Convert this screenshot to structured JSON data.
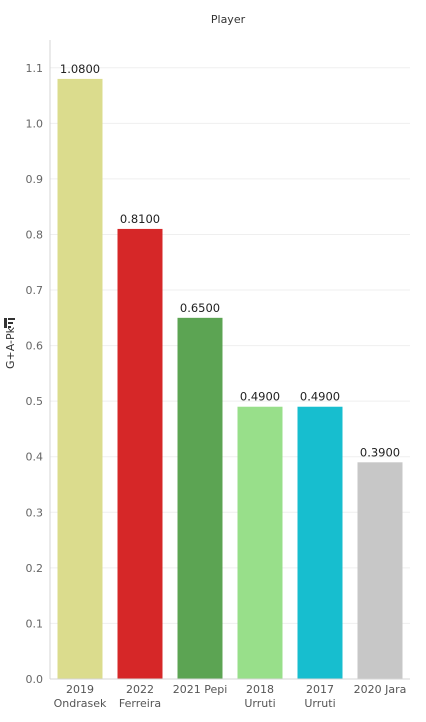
{
  "chart_data": {
    "type": "bar",
    "title": "Player",
    "ylabel": "G+A-Pk",
    "xlabel": "",
    "categories": [
      [
        "2019",
        "Ondrasek"
      ],
      [
        "2022",
        "Ferreira"
      ],
      [
        "2021 Pepi"
      ],
      [
        "2018",
        "Urruti"
      ],
      [
        "2017",
        "Urruti"
      ],
      [
        "2020 Jara"
      ]
    ],
    "values": [
      1.08,
      0.81,
      0.65,
      0.49,
      0.49,
      0.39
    ],
    "data_labels": [
      "1.0800",
      "0.8100",
      "0.6500",
      "0.4900",
      "0.4900",
      "0.3900"
    ],
    "colors": [
      "#dbdc8d",
      "#d62728",
      "#5ca453",
      "#98df8a",
      "#17becf",
      "#c7c7c7"
    ],
    "ylim": [
      0,
      1.15
    ],
    "yticks": [
      "0.0",
      "0.1",
      "0.2",
      "0.3",
      "0.4",
      "0.5",
      "0.6",
      "0.7",
      "0.8",
      "0.9",
      "1.0",
      "1.1"
    ],
    "grid": true,
    "legend": "none",
    "sort_icon": "sort-descending-icon"
  }
}
